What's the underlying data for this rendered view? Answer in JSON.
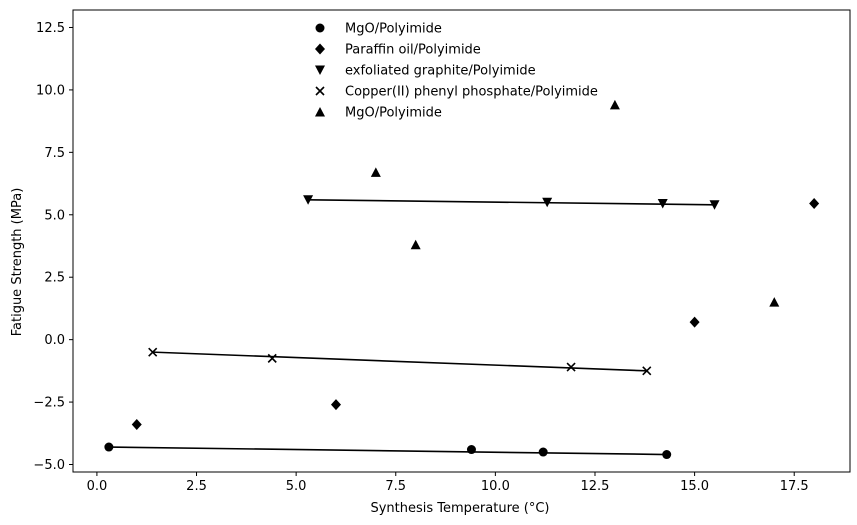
{
  "chart_data": {
    "type": "scatter",
    "title": "",
    "xlabel": "Synthesis Temperature (°C)",
    "ylabel": "Fatigue Strength (MPa)",
    "xlim": [
      -0.6,
      18.9
    ],
    "ylim": [
      -5.3,
      13.2
    ],
    "xticks": [
      0.0,
      2.5,
      5.0,
      7.5,
      10.0,
      12.5,
      15.0,
      17.5
    ],
    "xtick_labels": [
      "0.0",
      "2.5",
      "5.0",
      "7.5",
      "10.0",
      "12.5",
      "15.0",
      "17.5"
    ],
    "yticks": [
      -5.0,
      -2.5,
      0.0,
      2.5,
      5.0,
      7.5,
      10.0,
      12.5
    ],
    "ytick_labels": [
      "−5.0",
      "−2.5",
      "0.0",
      "2.5",
      "5.0",
      "7.5",
      "10.0",
      "12.5"
    ],
    "grid": false,
    "legend_position": "top-center",
    "color": "#000000",
    "series": [
      {
        "name": "MgO/Polyimide",
        "marker": "circle",
        "x": [
          0.3,
          9.4,
          11.2,
          14.3
        ],
        "y": [
          -4.3,
          -4.4,
          -4.5,
          -4.6
        ],
        "fit_line": [
          [
            0.3,
            -4.3
          ],
          [
            14.3,
            -4.6
          ]
        ]
      },
      {
        "name": "Paraffin oil/Polyimide",
        "marker": "diamond",
        "x": [
          1.0,
          6.0,
          15.0,
          18.0
        ],
        "y": [
          -3.4,
          -2.6,
          0.7,
          5.45
        ],
        "fit_line": null
      },
      {
        "name": "exfoliated graphite/Polyimide",
        "marker": "triangle-down",
        "x": [
          5.3,
          11.3,
          14.2,
          15.5
        ],
        "y": [
          5.6,
          5.5,
          5.45,
          5.4
        ],
        "fit_line": [
          [
            5.3,
            5.6
          ],
          [
            15.5,
            5.4
          ]
        ]
      },
      {
        "name": "Copper(II) phenyl phosphate/Polyimide",
        "marker": "x",
        "x": [
          1.4,
          4.4,
          11.9,
          13.8
        ],
        "y": [
          -0.5,
          -0.75,
          -1.1,
          -1.25
        ],
        "fit_line": [
          [
            1.4,
            -0.5
          ],
          [
            13.8,
            -1.25
          ]
        ]
      },
      {
        "name": "MgO/Polyimide",
        "marker": "triangle-up",
        "x": [
          7.0,
          8.0,
          13.0,
          17.0
        ],
        "y": [
          6.7,
          3.8,
          9.4,
          1.5
        ],
        "fit_line": null
      }
    ]
  }
}
